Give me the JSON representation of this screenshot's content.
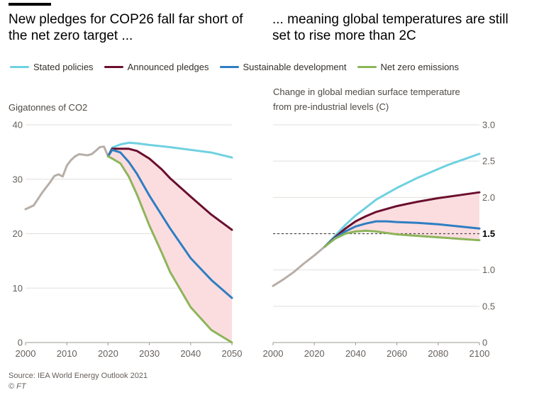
{
  "titles": {
    "left": "New pledges for COP26 fall far short of the net zero target ...",
    "right": "... meaning global temperatures are still set to rise more than 2C"
  },
  "legend": [
    {
      "label": "Stated policies",
      "color": "#6fd1e0"
    },
    {
      "label": "Announced pledges",
      "color": "#6b0f2e"
    },
    {
      "label": "Sustainable development",
      "color": "#2e7ec2"
    },
    {
      "label": "Net zero emissions",
      "color": "#8db55a"
    }
  ],
  "source": "Source: IEA World Energy Outlook 2021",
  "credit": "© FT",
  "colors": {
    "historical": "#b7aea8",
    "shade": "#fbdde0",
    "grid": "#e3dfdb",
    "reference": "#4d4845"
  },
  "chart_data": [
    {
      "type": "line",
      "ylabel": "Gigatonnes of CO2",
      "xlim": [
        2000,
        2050
      ],
      "ylim": [
        0,
        40
      ],
      "xticks": [
        "2000",
        "2010",
        "2020",
        "2030",
        "2040",
        "2050"
      ],
      "yticks": [
        "0",
        "10",
        "20",
        "30",
        "40"
      ],
      "grid": true,
      "shaded_between": [
        "Announced pledges",
        "Net zero emissions"
      ],
      "series": [
        {
          "name": "",
          "role": "historical",
          "x": [
            2000,
            2002,
            2004,
            2006,
            2007,
            2008,
            2009,
            2010,
            2011,
            2012,
            2013,
            2014,
            2015,
            2016,
            2017,
            2018,
            2019,
            2020
          ],
          "y": [
            24.5,
            25.2,
            27.5,
            29.5,
            30.6,
            30.9,
            30.5,
            32.5,
            33.5,
            34.2,
            34.6,
            34.5,
            34.4,
            34.6,
            35.2,
            35.9,
            36.0,
            34.2
          ]
        },
        {
          "name": "Stated policies",
          "x": [
            2020,
            2021,
            2023,
            2025,
            2027,
            2030,
            2035,
            2040,
            2045,
            2050
          ],
          "y": [
            34.2,
            35.8,
            36.4,
            36.7,
            36.6,
            36.3,
            35.9,
            35.4,
            34.9,
            34.0
          ]
        },
        {
          "name": "Announced pledges",
          "x": [
            2020,
            2021,
            2023,
            2025,
            2027,
            2030,
            2033,
            2035,
            2040,
            2045,
            2050
          ],
          "y": [
            34.2,
            35.6,
            35.6,
            35.6,
            35.2,
            33.8,
            31.8,
            30.2,
            26.8,
            23.5,
            20.7
          ]
        },
        {
          "name": "Sustainable development",
          "x": [
            2020,
            2021,
            2023,
            2025,
            2027,
            2030,
            2035,
            2040,
            2045,
            2050
          ],
          "y": [
            34.2,
            35.4,
            34.9,
            33.2,
            31.0,
            27.0,
            21.0,
            15.5,
            11.5,
            8.2
          ]
        },
        {
          "name": "Net zero emissions",
          "x": [
            2020,
            2021,
            2023,
            2025,
            2027,
            2030,
            2033,
            2035,
            2040,
            2045,
            2050
          ],
          "y": [
            34.2,
            33.8,
            32.9,
            30.5,
            27.2,
            21.5,
            16.5,
            13.0,
            6.5,
            2.3,
            0.0
          ]
        }
      ]
    },
    {
      "type": "line",
      "title": "Change in global median surface temperature from pre-industrial levels (C)",
      "xlim": [
        2000,
        2100
      ],
      "ylim": [
        0,
        3
      ],
      "xticks": [
        "2000",
        "2020",
        "2040",
        "2060",
        "2080",
        "2100"
      ],
      "yticks": [
        "0",
        "0.5",
        "1.0",
        "1.5",
        "2.0",
        "2.5",
        "3.0"
      ],
      "highlight_tick": "1.5",
      "reference_line": 1.5,
      "grid": true,
      "shaded_between": [
        "Announced pledges",
        "Net zero emissions"
      ],
      "series": [
        {
          "name": "",
          "role": "historical",
          "x": [
            2000,
            2005,
            2010,
            2015,
            2020,
            2025
          ],
          "y": [
            0.78,
            0.87,
            0.97,
            1.09,
            1.2,
            1.32
          ]
        },
        {
          "name": "Stated policies",
          "x": [
            2025,
            2030,
            2035,
            2040,
            2045,
            2050,
            2055,
            2060,
            2065,
            2070,
            2075,
            2080,
            2085,
            2090,
            2095,
            2100
          ],
          "y": [
            1.32,
            1.47,
            1.62,
            1.75,
            1.86,
            1.97,
            2.05,
            2.13,
            2.2,
            2.27,
            2.33,
            2.39,
            2.45,
            2.5,
            2.55,
            2.6
          ]
        },
        {
          "name": "Announced pledges",
          "x": [
            2025,
            2030,
            2035,
            2040,
            2045,
            2050,
            2055,
            2060,
            2065,
            2070,
            2080,
            2090,
            2100
          ],
          "y": [
            1.32,
            1.45,
            1.57,
            1.67,
            1.74,
            1.8,
            1.84,
            1.88,
            1.91,
            1.94,
            1.99,
            2.03,
            2.07
          ]
        },
        {
          "name": "Sustainable development",
          "x": [
            2025,
            2030,
            2035,
            2040,
            2045,
            2050,
            2055,
            2060,
            2070,
            2080,
            2090,
            2100
          ],
          "y": [
            1.32,
            1.44,
            1.53,
            1.6,
            1.64,
            1.67,
            1.67,
            1.66,
            1.65,
            1.63,
            1.6,
            1.57
          ]
        },
        {
          "name": "Net zero emissions",
          "x": [
            2025,
            2030,
            2035,
            2040,
            2045,
            2050,
            2055,
            2060,
            2070,
            2080,
            2090,
            2100
          ],
          "y": [
            1.32,
            1.43,
            1.5,
            1.53,
            1.54,
            1.53,
            1.51,
            1.49,
            1.47,
            1.45,
            1.43,
            1.41
          ]
        }
      ]
    }
  ]
}
